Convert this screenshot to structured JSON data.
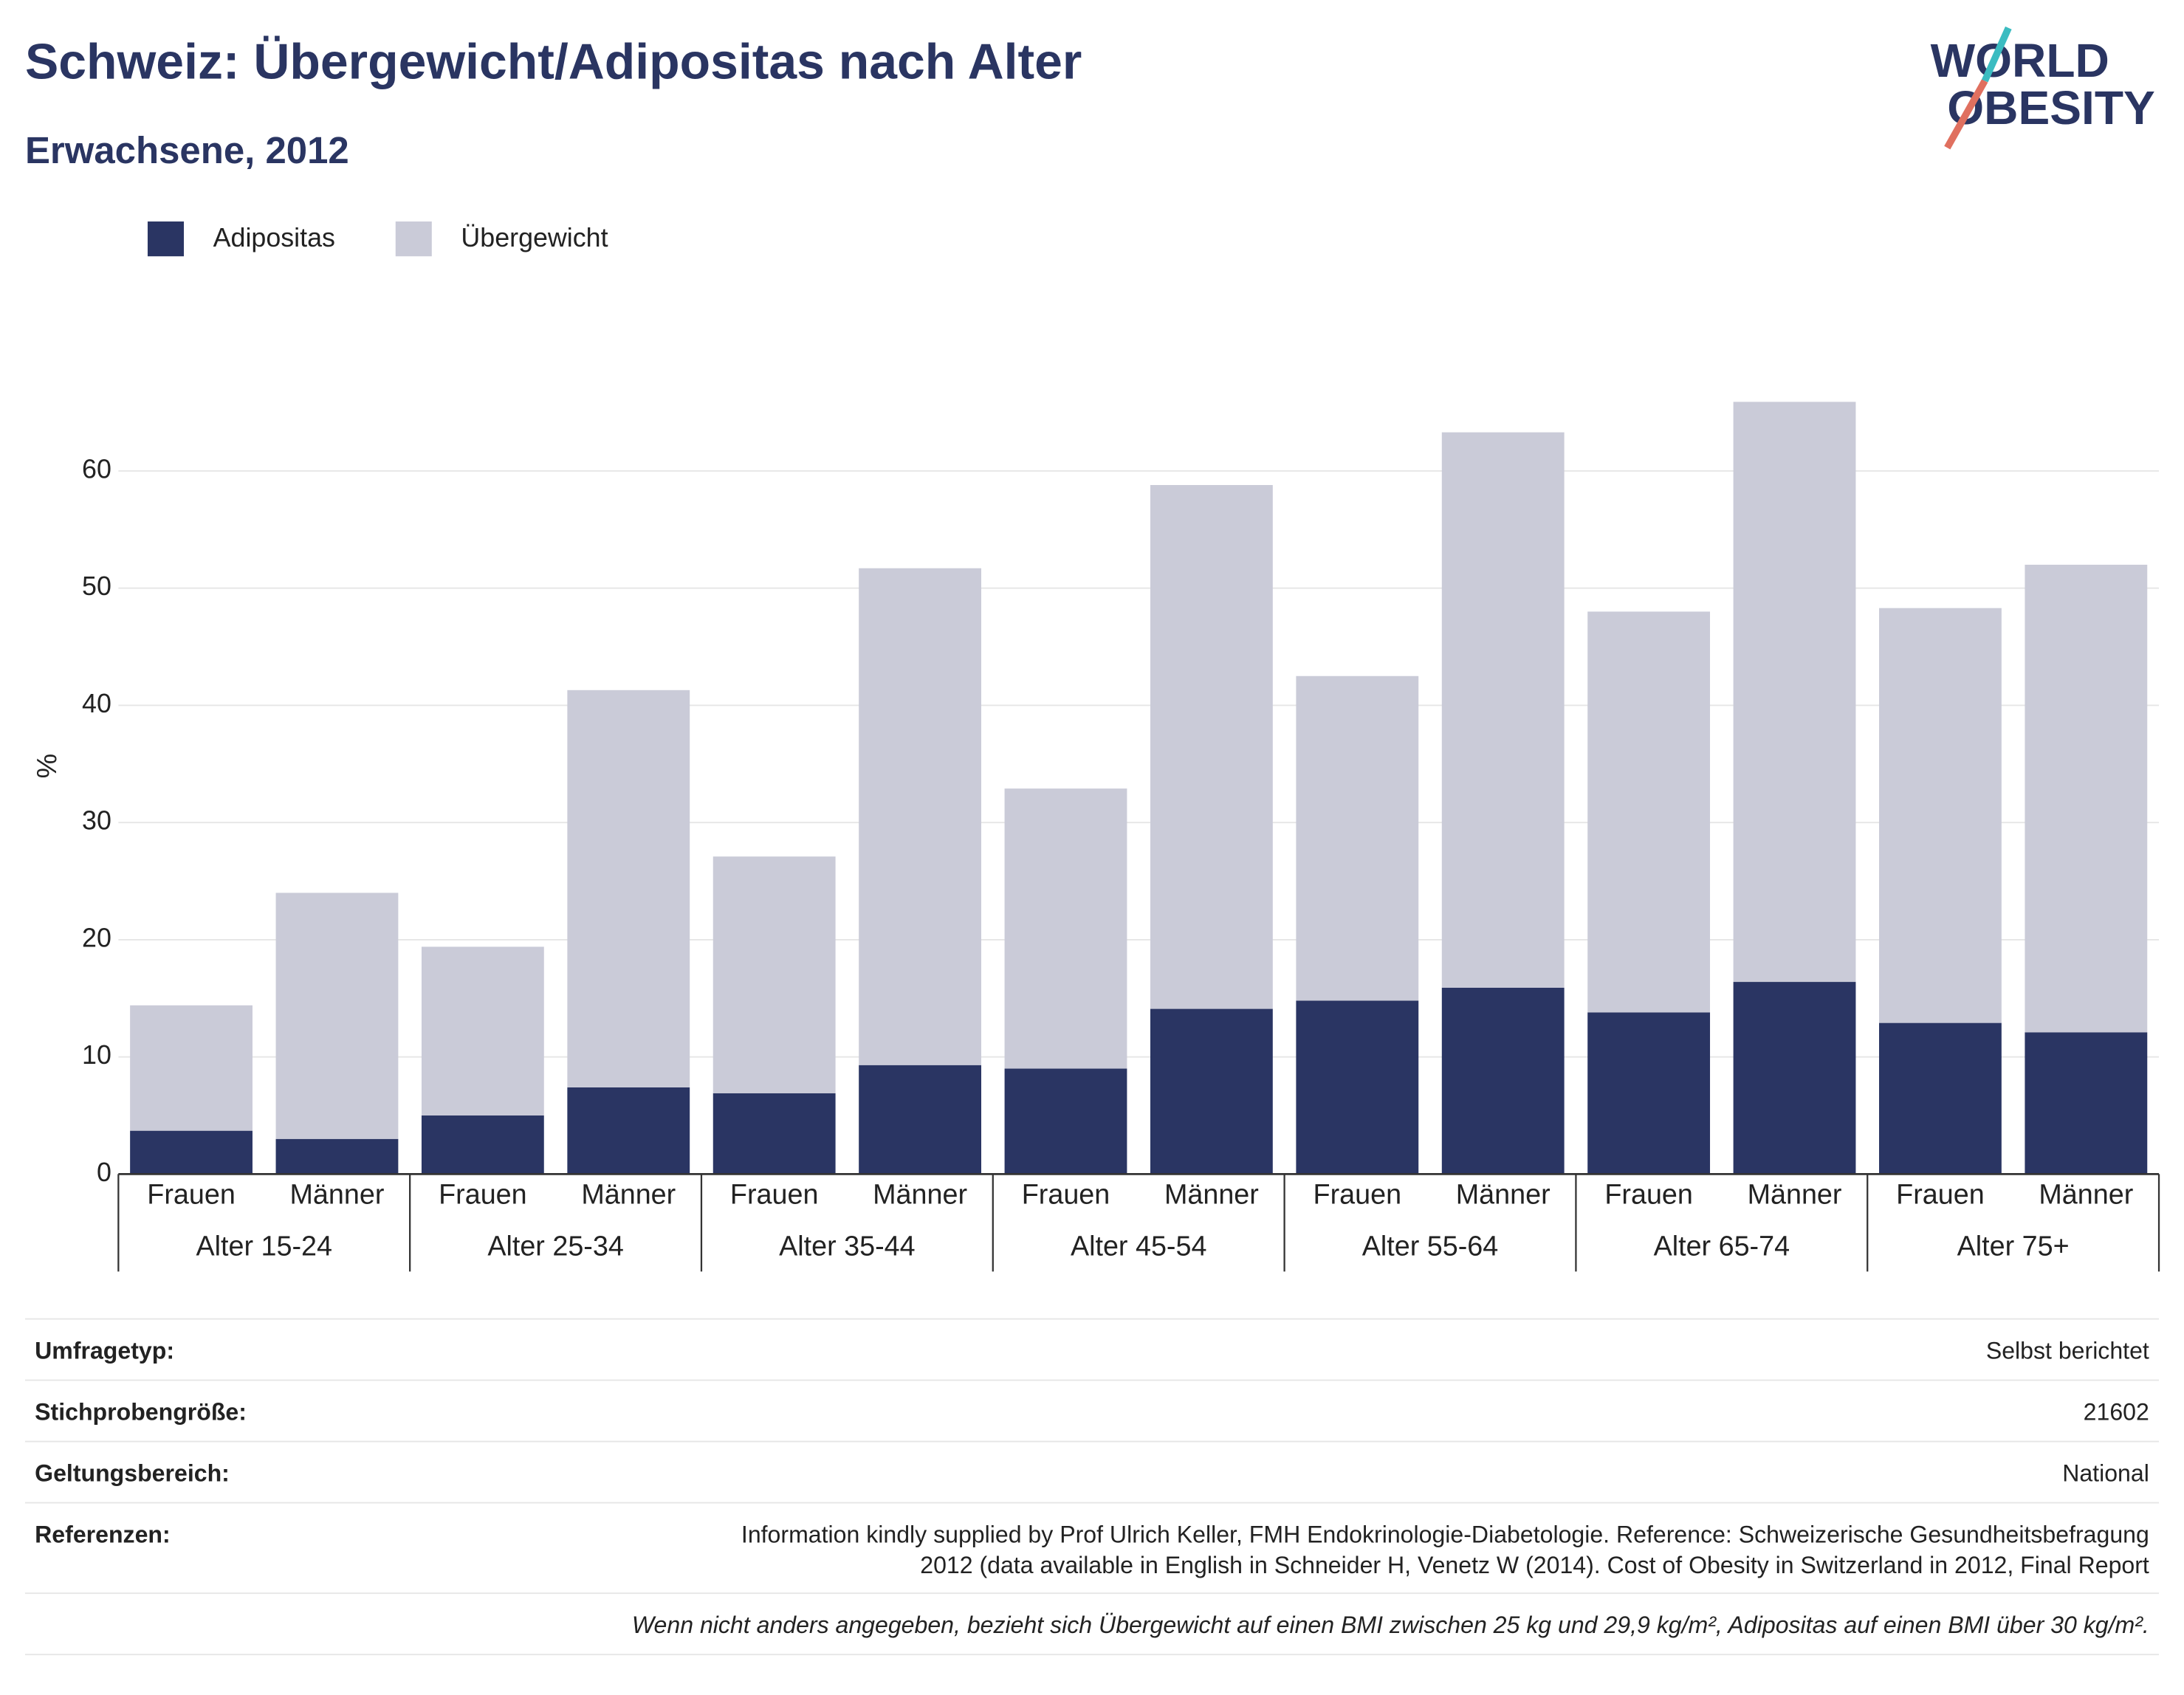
{
  "chart_data": {
    "type": "bar",
    "stacked": true,
    "title": "Schweiz: Übergewicht/Adipositas nach Alter",
    "subtitle": "Erwachsene, 2012",
    "y_label": "%",
    "categories": [
      "Frauen",
      "Männer",
      "Frauen",
      "Männer",
      "Frauen",
      "Männer",
      "Frauen",
      "Männer",
      "Frauen",
      "Männer",
      "Frauen",
      "Männer",
      "Frauen",
      "Männer"
    ],
    "groups": [
      "Alter 15-24",
      "Alter 25-34",
      "Alter 35-44",
      "Alter 45-54",
      "Alter 55-64",
      "Alter 65-74",
      "Alter 75+"
    ],
    "series": [
      {
        "name": "Adipositas",
        "color": "#2a3563",
        "values": [
          3.7,
          3.0,
          5.0,
          7.4,
          6.9,
          9.3,
          9.0,
          14.1,
          14.8,
          15.9,
          13.8,
          16.4,
          12.9,
          12.1
        ]
      },
      {
        "name": "Übergewicht",
        "color": "#cacbd8",
        "values": [
          10.7,
          21.0,
          14.4,
          33.9,
          20.2,
          42.4,
          23.9,
          44.7,
          27.7,
          47.4,
          34.2,
          49.5,
          35.4,
          39.9
        ]
      }
    ],
    "ylim": [
      0,
      70
    ],
    "yticks": [
      0,
      10,
      20,
      30,
      40,
      50,
      60
    ],
    "grid": true,
    "legend": "top-left"
  },
  "logo": {
    "line1": "WORLD",
    "line2": "OBESITY"
  },
  "info": [
    {
      "label": "Umfragetyp:",
      "value": [
        "Selbst berichtet"
      ]
    },
    {
      "label": "Stichprobengröße:",
      "value": [
        "21602"
      ]
    },
    {
      "label": "Geltungsbereich:",
      "value": [
        "National"
      ]
    },
    {
      "label": "Referenzen:",
      "value": [
        "Information kindly supplied by Prof Ulrich Keller, FMH Endokrinologie-Diabetologie. Reference: Schweizerische Gesundheitsbefragung",
        "2012 (data available in English in Schneider H, Venetz W (2014). Cost of Obesity in Switzerland in 2012, Final Report"
      ]
    }
  ],
  "footnote": "Wenn nicht anders angegeben, bezieht sich Übergewicht auf einen BMI zwischen 25 kg und 29,9 kg/m², Adipositas auf einen BMI über 30 kg/m²."
}
